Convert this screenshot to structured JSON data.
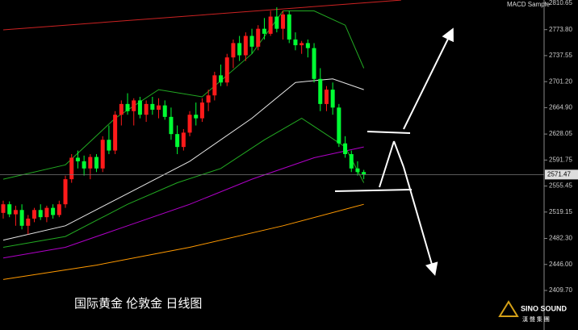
{
  "chart_data": {
    "type": "candlestick",
    "title": "MACD Sample",
    "annotation": "国际黄金  伦敦金  日线图",
    "watermark": "SINO SOUND",
    "watermark_subtitle": "漢 聲 集 團",
    "up_color": "#ff1a1a",
    "down_color": "#00ff33",
    "ylim": [
      2354.5,
      2815.15
    ],
    "xlim": [
      -0.52,
      87
    ],
    "yticks": [
      2810.65,
      {
        "value": 2773.8,
        "label": "2773.80"
      },
      2737.55,
      {
        "value": 2701.2,
        "label": "2701.20"
      },
      {
        "value": 2664.9,
        "label": "2664.90"
      },
      2628.05,
      2591.75,
      2555.45,
      2519.15,
      {
        "value": 2482.3,
        "label": "2482.30"
      },
      {
        "value": 2446.0,
        "label": "2446.00"
      },
      {
        "value": 2409.7,
        "label": "2409.70"
      }
    ],
    "last_price": 2571.47,
    "candles": [
      [
        2518,
        2535,
        2510,
        2530
      ],
      [
        2530,
        2534,
        2512,
        2516
      ],
      [
        2516,
        2528,
        2500,
        2522
      ],
      [
        2522,
        2530,
        2495,
        2500
      ],
      [
        2500,
        2515,
        2488,
        2510
      ],
      [
        2510,
        2525,
        2505,
        2522
      ],
      [
        2522,
        2530,
        2508,
        2512
      ],
      [
        2512,
        2528,
        2505,
        2525
      ],
      [
        2525,
        2530,
        2510,
        2515
      ],
      [
        2515,
        2535,
        2512,
        2530
      ],
      [
        2530,
        2570,
        2525,
        2565
      ],
      [
        2565,
        2600,
        2560,
        2595
      ],
      [
        2595,
        2605,
        2580,
        2590
      ],
      [
        2590,
        2598,
        2570,
        2580
      ],
      [
        2580,
        2600,
        2565,
        2596
      ],
      [
        2596,
        2600,
        2575,
        2580
      ],
      [
        2580,
        2625,
        2575,
        2620
      ],
      [
        2620,
        2640,
        2600,
        2605
      ],
      [
        2605,
        2660,
        2600,
        2655
      ],
      [
        2655,
        2675,
        2640,
        2670
      ],
      [
        2670,
        2685,
        2655,
        2660
      ],
      [
        2660,
        2678,
        2640,
        2675
      ],
      [
        2675,
        2680,
        2650,
        2655
      ],
      [
        2655,
        2675,
        2645,
        2670
      ],
      [
        2670,
        2680,
        2655,
        2662
      ],
      [
        2662,
        2678,
        2650,
        2668
      ],
      [
        2668,
        2675,
        2648,
        2652
      ],
      [
        2652,
        2665,
        2620,
        2628
      ],
      [
        2628,
        2640,
        2600,
        2610
      ],
      [
        2610,
        2635,
        2605,
        2630
      ],
      [
        2630,
        2660,
        2625,
        2655
      ],
      [
        2655,
        2672,
        2640,
        2650
      ],
      [
        2650,
        2678,
        2645,
        2672
      ],
      [
        2672,
        2690,
        2660,
        2682
      ],
      [
        2682,
        2715,
        2675,
        2710
      ],
      [
        2710,
        2725,
        2695,
        2700
      ],
      [
        2700,
        2740,
        2695,
        2735
      ],
      [
        2735,
        2760,
        2720,
        2755
      ],
      [
        2755,
        2765,
        2730,
        2738
      ],
      [
        2738,
        2770,
        2730,
        2765
      ],
      [
        2765,
        2775,
        2740,
        2750
      ],
      [
        2750,
        2780,
        2745,
        2775
      ],
      [
        2775,
        2790,
        2760,
        2768
      ],
      [
        2768,
        2800,
        2765,
        2792
      ],
      [
        2792,
        2805,
        2770,
        2775
      ],
      [
        2775,
        2800,
        2760,
        2795
      ],
      [
        2795,
        2800,
        2755,
        2760
      ],
      [
        2760,
        2770,
        2745,
        2752
      ],
      [
        2752,
        2758,
        2740,
        2755
      ],
      [
        2755,
        2760,
        2735,
        2748
      ],
      [
        2748,
        2755,
        2700,
        2705
      ],
      [
        2705,
        2720,
        2660,
        2670
      ],
      [
        2670,
        2695,
        2660,
        2690
      ],
      [
        2690,
        2700,
        2655,
        2665
      ],
      [
        2665,
        2670,
        2610,
        2615
      ],
      [
        2615,
        2625,
        2595,
        2600
      ],
      [
        2600,
        2605,
        2575,
        2580
      ],
      [
        2580,
        2590,
        2570,
        2575
      ],
      [
        2575,
        2578,
        2565,
        2571.47
      ]
    ],
    "lines": [
      {
        "color": "#e8e8e8",
        "x": [
          0,
          10,
          20,
          30,
          40,
          47,
          53,
          58
        ],
        "values": [
          2480,
          2500,
          2545,
          2590,
          2650,
          2700,
          2705,
          2690
        ]
      },
      {
        "color": "#b000c8",
        "x": [
          0,
          10,
          20,
          30,
          40,
          50,
          58
        ],
        "values": [
          2455,
          2470,
          2500,
          2530,
          2565,
          2595,
          2610
        ]
      },
      {
        "color": "#ff9900",
        "x": [
          0,
          15,
          30,
          45,
          58
        ],
        "values": [
          2425,
          2445,
          2470,
          2500,
          2530
        ]
      },
      {
        "color": "#22aa22",
        "x": [
          0,
          10,
          18,
          25,
          32,
          40,
          45,
          50,
          55,
          58
        ],
        "values": [
          2565,
          2585,
          2650,
          2690,
          2680,
          2740,
          2800,
          2800,
          2780,
          2720
        ]
      },
      {
        "color": "#22aa22",
        "x": [
          0,
          10,
          20,
          28,
          35,
          42,
          48,
          55,
          58
        ],
        "values": [
          2470,
          2485,
          2530,
          2560,
          2580,
          2620,
          2650,
          2610,
          2560
        ]
      },
      {
        "color": "#cc2222",
        "x": [
          0,
          64
        ],
        "values": [
          2773.5,
          2815
        ]
      }
    ]
  }
}
